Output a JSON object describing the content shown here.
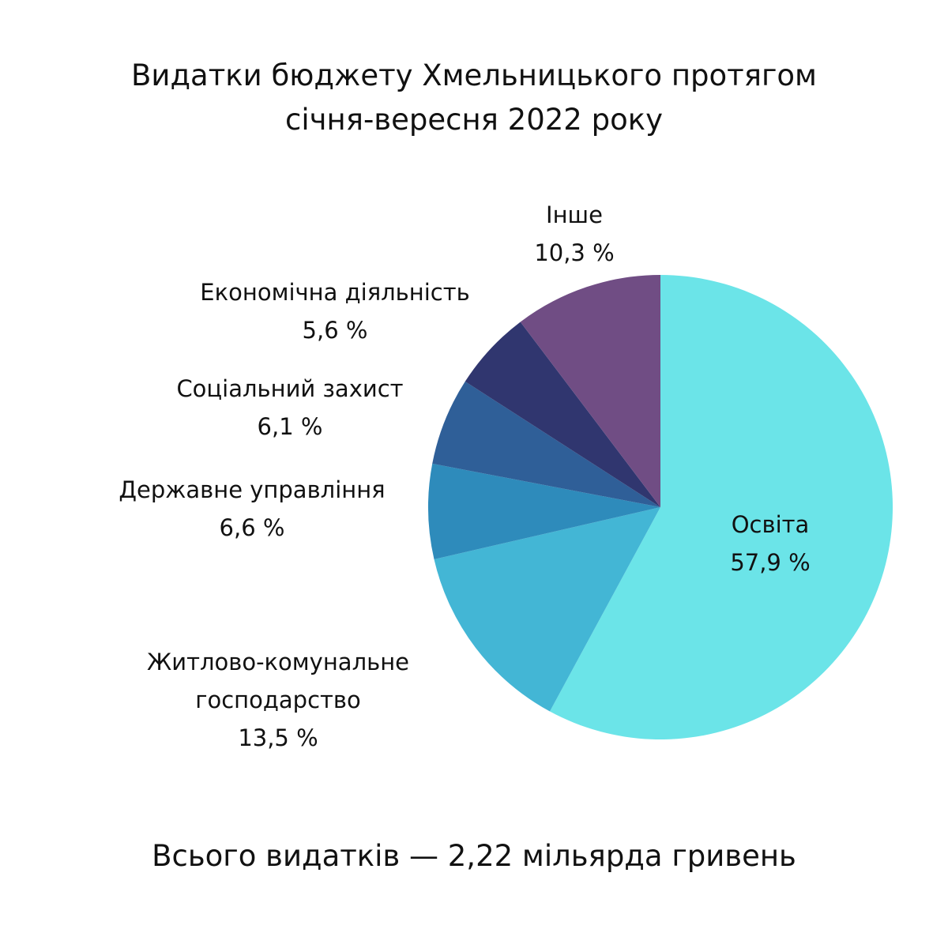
{
  "title_lines": [
    "Видатки бюджету Хмельницького протягом",
    "січня-вересня 2022 року"
  ],
  "total": "Всього видатків — 2,22 мільярда гривень",
  "chart_data": {
    "type": "pie",
    "title": "Видатки бюджету Хмельницького протягом січня-вересня 2022 року",
    "slices": [
      {
        "label_lines": [
          "Освіта"
        ],
        "value": 57.9,
        "value_text": "57,9 %",
        "color": "#6be4e8"
      },
      {
        "label_lines": [
          "Житлово-комунальне",
          "господарство"
        ],
        "value": 13.5,
        "value_text": "13,5 %",
        "color": "#43b6d5"
      },
      {
        "label_lines": [
          "Державне управління"
        ],
        "value": 6.6,
        "value_text": "6,6 %",
        "color": "#2e8bbb"
      },
      {
        "label_lines": [
          "Соціальний захист"
        ],
        "value": 6.1,
        "value_text": "6,1 %",
        "color": "#2f5f98"
      },
      {
        "label_lines": [
          "Економічна діяльність"
        ],
        "value": 5.6,
        "value_text": "5,6 %",
        "color": "#30366f"
      },
      {
        "label_lines": [
          "Інше"
        ],
        "value": 10.3,
        "value_text": "10,3 %",
        "color": "#704d84"
      }
    ]
  }
}
